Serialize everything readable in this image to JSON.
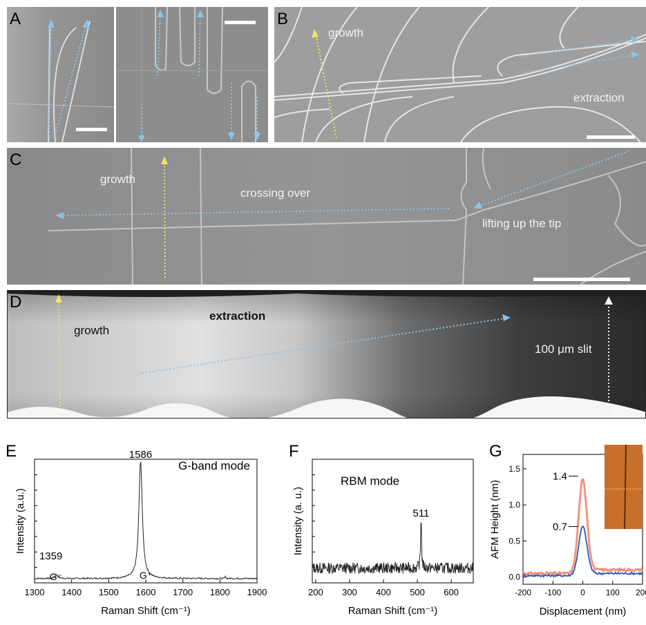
{
  "panels": {
    "A": {
      "label": "A"
    },
    "B": {
      "label": "B",
      "growth": "growth",
      "extraction": "extraction"
    },
    "C": {
      "label": "C",
      "growth": "growth",
      "crossing": "crossing over",
      "lifting": "lifting up the tip"
    },
    "D": {
      "label": "D",
      "growth": "growth",
      "extraction": "extraction",
      "slit": "100 μm slit"
    },
    "E": {
      "label": "E"
    },
    "F": {
      "label": "F"
    },
    "G": {
      "label": "G"
    }
  },
  "colors": {
    "arrow_blue": "#8cc4e8",
    "arrow_yellow": "#f0e070",
    "afm_orange": "#f4937a",
    "afm_blue": "#2a55b8"
  },
  "chart_data": [
    {
      "type": "line",
      "panel": "E",
      "xlabel": "Raman Shift (cm⁻¹)",
      "ylabel": "Intensity (a.u.)",
      "xlim": [
        1300,
        1900
      ],
      "xticks": [
        1300,
        1400,
        1500,
        1600,
        1700,
        1800,
        1900
      ],
      "legend_text": "G-band mode",
      "annotations": [
        {
          "text": "1586",
          "x": 1586
        },
        {
          "text": "1359",
          "x": 1359
        },
        {
          "text": "G⁻",
          "x": 1365
        },
        {
          "text": "G⁺",
          "x": 1600
        }
      ],
      "peaks": [
        {
          "x": 1586,
          "height": 0.95,
          "width": 11
        },
        {
          "x": 1359,
          "height": 0.03,
          "width": 10
        },
        {
          "x": 1815,
          "height": 0.015,
          "width": 3
        }
      ]
    },
    {
      "type": "line",
      "panel": "F",
      "xlabel": "Raman Shift (cm⁻¹)",
      "ylabel": "Intensity (a. u.)",
      "xlim": [
        190,
        665
      ],
      "xticks": [
        200,
        300,
        400,
        500,
        600
      ],
      "legend_text": "RBM mode",
      "annotations": [
        {
          "text": "511",
          "x": 511
        }
      ],
      "peaks": [
        {
          "x": 511,
          "height": 0.45,
          "width": 3
        }
      ]
    },
    {
      "type": "line",
      "panel": "G",
      "xlabel": "Displacement (nm)",
      "ylabel": "AFM Height (nm)",
      "xlim": [
        -200,
        200
      ],
      "ylim": [
        -0.1,
        1.7
      ],
      "xticks": [
        -200,
        -100,
        0,
        100,
        200
      ],
      "xtick_labels": [
        "-200",
        "-100",
        "0",
        "100",
        "200"
      ],
      "yticks": [
        0.0,
        0.5,
        1.0,
        1.5
      ],
      "ytick_labels": [
        "0.0",
        "0.5",
        "1.0",
        "1.5"
      ],
      "annotations": [
        {
          "text": "1.4",
          "y": 1.4
        },
        {
          "text": "0.7",
          "y": 0.7
        }
      ],
      "series": [
        {
          "peak": 1.35,
          "color": "#f4937a",
          "base_left": 0.05,
          "base_right": 0.1
        },
        {
          "peak": 0.7,
          "color": "#2a55b8",
          "base_left": 0.02,
          "base_right": 0.05
        }
      ]
    }
  ]
}
